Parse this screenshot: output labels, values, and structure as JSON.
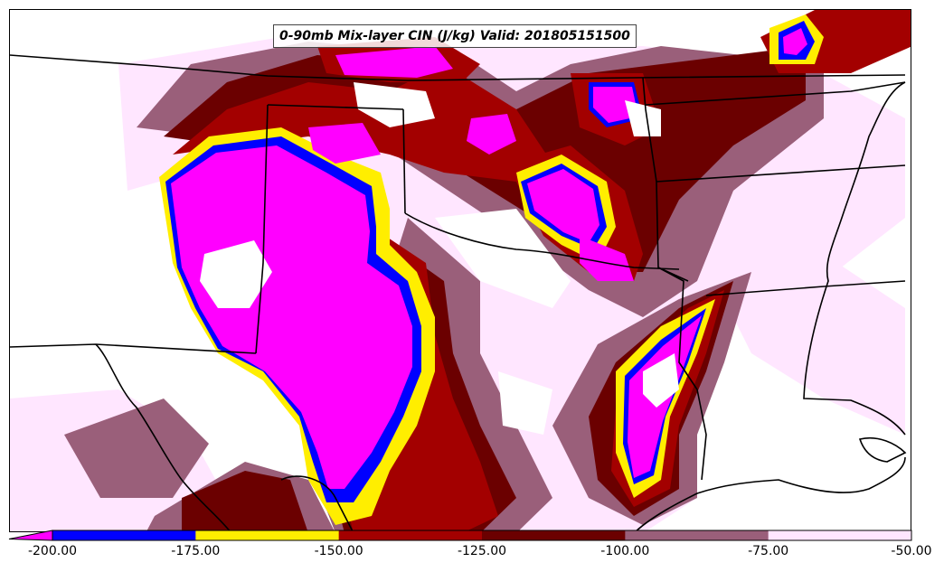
{
  "title": "0-90mb Mix-layer CIN (J/kg) Valid: 201805151500",
  "colorbar": {
    "levels": [
      -200,
      -175,
      -150,
      -125,
      -100,
      -75,
      -50
    ],
    "tick_labels": [
      "-200.00",
      "-175.00",
      "-150.00",
      "-125.00",
      "-100.00",
      "-75.00",
      "-50.00"
    ],
    "colors": [
      "#0000ff",
      "#ffee00",
      "#a30000",
      "#6b0000",
      "#9a5f7a",
      "#ffe6ff"
    ],
    "under_color": "#ff00ff",
    "extend": "min"
  },
  "map": {
    "field": "0-90mb Mix-layer CIN",
    "units": "J/kg",
    "valid_time": "201805151500",
    "color_scale": {
      "le_-200": "#ff00ff",
      "-200_to_-175": "#0000ff",
      "-175_to_-150": "#ffee00",
      "-150_to_-125": "#a30000",
      "-125_to_-100": "#6b0000",
      "-100_to_-75": "#9a5f7a",
      "-75_to_-50": "#ffe6ff",
      "gt_-50": "#ffffff"
    },
    "outlines": "state-borders-and-coastline"
  }
}
